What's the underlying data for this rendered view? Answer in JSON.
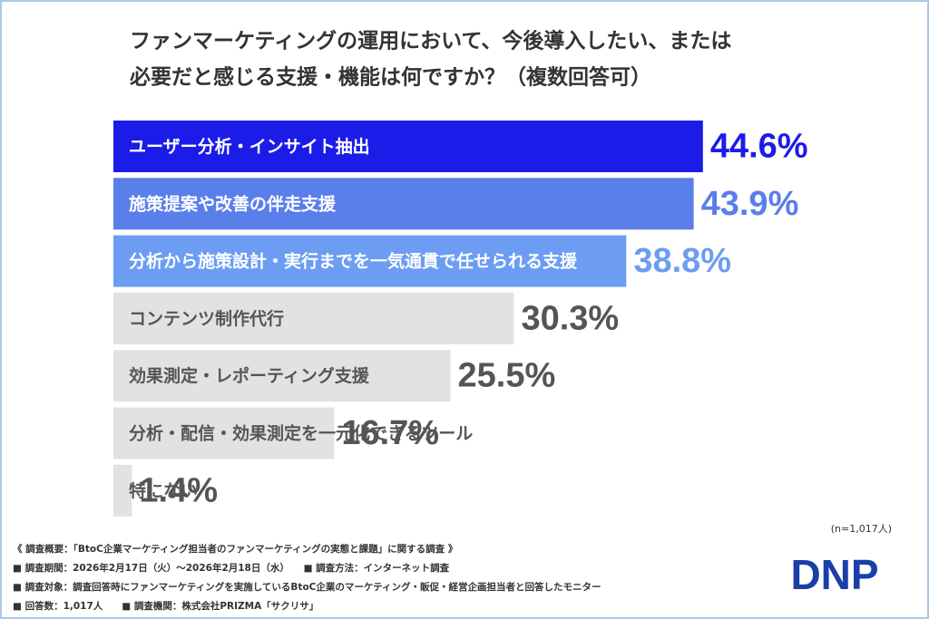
{
  "chart_data": {
    "type": "bar",
    "orientation": "horizontal",
    "title_lines": [
      "ファンマーケティングの運用において、今後導入したい、または",
      "必要だと感じる支援・機能は何ですか？（複数回答可）"
    ],
    "categories": [
      "ユーザー分析・インサイト抽出",
      "施策提案や改善の伴走支援",
      "分析から施策設計・実行までを一気通貫で任せられる支援",
      "コンテンツ制作代行",
      "効果測定・レポーティング支援",
      "分析・配信・効果測定を一元化できるツール",
      "特にない"
    ],
    "values": [
      44.6,
      43.9,
      38.8,
      30.3,
      25.5,
      16.7,
      1.4
    ],
    "value_labels": [
      "44.6%",
      "43.9%",
      "38.8%",
      "30.3%",
      "25.5%",
      "16.7%",
      "1.4%"
    ],
    "colors": [
      "#1c1ce8",
      "#5a7fea",
      "#6c9df2",
      "#e2e2e2",
      "#e2e2e2",
      "#e2e2e2",
      "#e2e2e2"
    ],
    "sample_note": "(n=1,017人)",
    "notes": [
      "《 調査概要：「BtoC企業マーケティング担当者のファンマーケティングの実態と課題」に関する調査 》",
      "■ 調査期間：2026年2月17日（火）〜2026年2月18日（水）　　■ 調査方法：インターネット調査",
      "■ 調査対象：調査回答時にファンマーケティングを実施しているBtoC企業のマーケティング・販促・経営企画担当者と回答したモニター",
      "■ 回答数：1,017人　　■ 調査機関：株式会社PRIZMA「サクリサ」"
    ],
    "logo": "DNP"
  }
}
